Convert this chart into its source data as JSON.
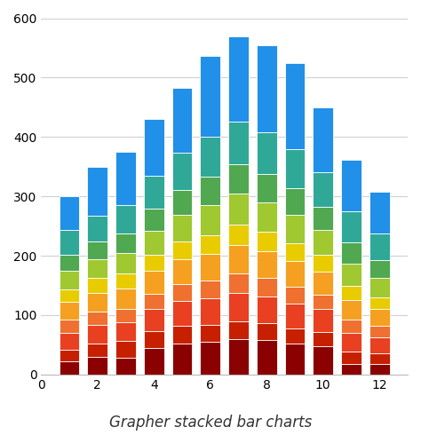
{
  "x": [
    1,
    2,
    3,
    4,
    5,
    6,
    7,
    8,
    9,
    10,
    11,
    12
  ],
  "totals": [
    300,
    350,
    375,
    430,
    483,
    537,
    570,
    555,
    525,
    450,
    362,
    307
  ],
  "layers": [
    [
      22,
      30,
      28,
      45,
      52,
      55,
      60,
      58,
      52,
      48,
      18,
      17
    ],
    [
      20,
      22,
      28,
      28,
      30,
      28,
      30,
      28,
      26,
      24,
      20,
      18
    ],
    [
      28,
      32,
      32,
      38,
      42,
      45,
      48,
      46,
      42,
      38,
      32,
      27
    ],
    [
      22,
      22,
      22,
      25,
      28,
      30,
      32,
      30,
      28,
      25,
      22,
      20
    ],
    [
      30,
      32,
      35,
      38,
      42,
      45,
      48,
      46,
      43,
      38,
      33,
      28
    ],
    [
      22,
      24,
      25,
      28,
      30,
      32,
      34,
      32,
      30,
      28,
      24,
      20
    ],
    [
      30,
      32,
      35,
      40,
      45,
      50,
      52,
      50,
      48,
      42,
      38,
      33
    ],
    [
      28,
      30,
      32,
      38,
      42,
      48,
      50,
      48,
      45,
      40,
      36,
      30
    ],
    [
      42,
      44,
      48,
      55,
      62,
      68,
      72,
      70,
      65,
      58,
      52,
      44
    ],
    [
      56,
      82,
      90,
      95,
      110,
      136,
      144,
      147,
      146,
      109,
      87,
      70
    ]
  ],
  "colors": [
    "#8B0000",
    "#C62000",
    "#E84020",
    "#F07030",
    "#F5A020",
    "#E8CC00",
    "#A0C830",
    "#50A850",
    "#30A898",
    "#2090E8"
  ],
  "title": "Grapher stacked bar charts",
  "ylim": [
    0,
    600
  ],
  "yticks": [
    0,
    100,
    200,
    300,
    400,
    500,
    600
  ],
  "xticks": [
    0,
    2,
    4,
    6,
    8,
    10,
    12
  ],
  "xlim": [
    0,
    13
  ],
  "bar_width": 0.72,
  "background_color": "#ffffff",
  "grid_color": "#d0d0d0"
}
